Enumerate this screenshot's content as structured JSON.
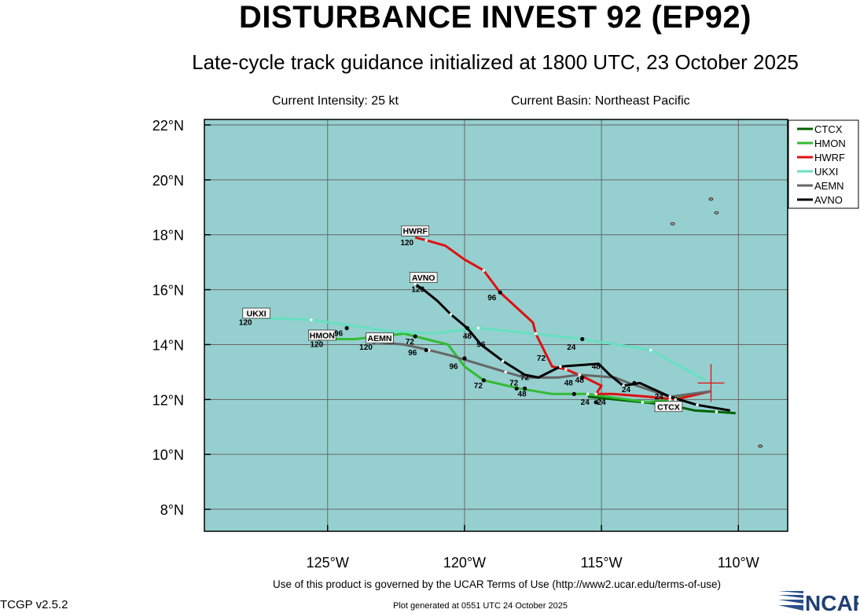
{
  "title": "DISTURBANCE INVEST 92 (EP92)",
  "subtitle": "Late-cycle track guidance initialized at 1800 UTC, 23 October 2025",
  "current_intensity": "Current Intensity: 25 kt",
  "current_basin": "Current Basin: Northeast Pacific",
  "footer_terms": "Use of this product is governed by the UCAR Terms of Use (http://www2.ucar.edu/terms-of-use)",
  "footer_version": "TCGP v2.5.2",
  "footer_generated": "Plot generated at 0551 UTC   24 October 2025",
  "logo_text": "NCAR",
  "map": {
    "lon_range": [
      -129.5,
      -108.2
    ],
    "lat_range": [
      7.2,
      22.2
    ],
    "lon_ticks": [
      -125,
      -120,
      -115,
      -110
    ],
    "lat_ticks": [
      8,
      10,
      12,
      14,
      16,
      18,
      20,
      22
    ],
    "lon_tick_labels": [
      "125°W",
      "120°W",
      "115°W",
      "110°W"
    ],
    "lat_tick_labels": [
      "8°N",
      "10°N",
      "12°N",
      "14°N",
      "16°N",
      "18°N",
      "20°N",
      "22°N"
    ],
    "background_color": "#96cfcf",
    "grid": true,
    "legend_position": "top-right",
    "current_position": {
      "lon": -111.0,
      "lat": 12.6,
      "marker": "red-crosshair"
    },
    "islands": [
      {
        "lon": -110.8,
        "lat": 18.8
      },
      {
        "lon": -112.4,
        "lat": 18.4
      },
      {
        "lon": -111.0,
        "lat": 19.3
      },
      {
        "lon": -109.2,
        "lat": 10.3
      }
    ]
  },
  "chart_data": {
    "type": "line",
    "series": [
      {
        "name": "CTCX",
        "color": "#006400",
        "points": [
          [
            -111.0,
            12.3
          ],
          [
            -112.0,
            11.65
          ],
          [
            -113.5,
            11.8
          ],
          [
            -116.0,
            12.2
          ],
          [
            -110.1,
            11.55
          ],
          [
            -110.8,
            11.55
          ]
        ],
        "track": [
          [
            -110.1,
            11.5
          ],
          [
            -110.8,
            11.55
          ],
          [
            -111.6,
            11.6
          ],
          [
            -112.5,
            11.8
          ],
          [
            -113.5,
            11.9
          ],
          [
            -114.5,
            12.0
          ],
          [
            -115.5,
            12.1
          ]
        ],
        "labels": [
          {
            "text": "CTCX",
            "lon": -112.55,
            "lat": 11.7,
            "boxed": true
          }
        ]
      },
      {
        "name": "HMON",
        "color": "#33bb33",
        "track": [
          [
            -111.0,
            12.3
          ],
          [
            -112.5,
            12.0
          ],
          [
            -113.3,
            11.9
          ],
          [
            -114.8,
            12.1
          ],
          [
            -115.5,
            12.2
          ],
          [
            -116.8,
            12.2
          ],
          [
            -118.0,
            12.4
          ],
          [
            -119.3,
            12.7
          ],
          [
            -120.0,
            13.2
          ],
          [
            -120.6,
            14.0
          ],
          [
            -121.8,
            14.3
          ],
          [
            -122.2,
            14.4
          ],
          [
            -124.0,
            14.2
          ],
          [
            -125.3,
            14.2
          ]
        ],
        "dots": [
          [
            -116.0,
            12.2
          ],
          [
            -117.8,
            12.4
          ],
          [
            -119.3,
            12.7
          ],
          [
            -121.8,
            14.3
          ],
          [
            -125.3,
            14.2
          ]
        ],
        "labels": [
          {
            "text": "48",
            "lon": -117.9,
            "lat": 12.2
          },
          {
            "text": "72",
            "lon": -119.5,
            "lat": 12.5
          },
          {
            "text": "120",
            "lon": -125.4,
            "lat": 14.0
          },
          {
            "text": "HMON",
            "lon": -125.2,
            "lat": 14.3,
            "boxed": true
          }
        ]
      },
      {
        "name": "HWRF",
        "color": "#dd1111",
        "track": [
          [
            -111.0,
            12.3
          ],
          [
            -112.3,
            12.0
          ],
          [
            -113.3,
            12.1
          ],
          [
            -114.6,
            12.2
          ],
          [
            -115.2,
            12.2
          ],
          [
            -115.0,
            12.5
          ],
          [
            -115.6,
            12.8
          ],
          [
            -116.3,
            13.1
          ],
          [
            -116.8,
            13.2
          ],
          [
            -117.0,
            13.6
          ],
          [
            -117.4,
            14.4
          ],
          [
            -117.5,
            14.8
          ],
          [
            -118.7,
            15.9
          ],
          [
            -119.3,
            16.7
          ],
          [
            -120.0,
            17.1
          ],
          [
            -120.7,
            17.6
          ],
          [
            -121.4,
            17.8
          ],
          [
            -121.8,
            17.9
          ]
        ],
        "dots": [
          [
            -115.2,
            11.9
          ],
          [
            -118.7,
            15.9
          ]
        ],
        "labels": [
          {
            "text": "24",
            "lon": -115.6,
            "lat": 11.9
          },
          {
            "text": "96",
            "lon": -119.0,
            "lat": 15.7
          },
          {
            "text": "120",
            "lon": -122.1,
            "lat": 17.7
          },
          {
            "text": "HWRF",
            "lon": -121.8,
            "lat": 18.1,
            "boxed": true
          }
        ]
      },
      {
        "name": "UKXI",
        "color": "#66e0c0",
        "track": [
          [
            -111.2,
            12.7
          ],
          [
            -113.2,
            13.8
          ],
          [
            -115.7,
            14.2
          ],
          [
            -117.5,
            14.4
          ],
          [
            -119.5,
            14.6
          ],
          [
            -121.2,
            14.4
          ],
          [
            -122.8,
            14.5
          ],
          [
            -125.6,
            14.9
          ],
          [
            -128.0,
            15.0
          ]
        ],
        "dots": [
          [
            -115.7,
            14.2
          ],
          [
            -124.3,
            14.6
          ]
        ],
        "labels": [
          {
            "text": "24",
            "lon": -116.1,
            "lat": 13.9
          },
          {
            "text": "48",
            "lon": -119.9,
            "lat": 14.3
          },
          {
            "text": "96",
            "lon": -124.6,
            "lat": 14.4
          },
          {
            "text": "120",
            "lon": -128.0,
            "lat": 14.8
          },
          {
            "text": "UKXI",
            "lon": -127.6,
            "lat": 15.1,
            "boxed": true
          }
        ]
      },
      {
        "name": "AEMN",
        "color": "#666666",
        "track": [
          [
            -111.0,
            12.3
          ],
          [
            -112.5,
            12.1
          ],
          [
            -114.0,
            12.6
          ],
          [
            -114.5,
            12.8
          ],
          [
            -115.8,
            12.9
          ],
          [
            -116.6,
            12.8
          ],
          [
            -117.8,
            12.8
          ],
          [
            -118.5,
            13.0
          ],
          [
            -119.5,
            13.3
          ],
          [
            -120.5,
            13.6
          ],
          [
            -121.3,
            13.8
          ],
          [
            -122.2,
            14.0
          ],
          [
            -123.3,
            14.1
          ]
        ],
        "dots": [
          [
            -121.4,
            13.8
          ],
          [
            -123.3,
            14.1
          ]
        ],
        "labels": [
          {
            "text": "48",
            "lon": -115.8,
            "lat": 12.7
          },
          {
            "text": "72",
            "lon": -118.2,
            "lat": 12.6
          },
          {
            "text": "96",
            "lon": -121.9,
            "lat": 13.7
          },
          {
            "text": "120",
            "lon": -123.6,
            "lat": 13.9
          },
          {
            "text": "AEMN",
            "lon": -123.1,
            "lat": 14.2,
            "boxed": true
          }
        ]
      },
      {
        "name": "AVNO",
        "color": "#000000",
        "track": [
          [
            -110.3,
            11.6
          ],
          [
            -111.5,
            11.8
          ],
          [
            -112.5,
            12.1
          ],
          [
            -113.6,
            12.6
          ],
          [
            -114.2,
            12.5
          ],
          [
            -114.7,
            12.9
          ],
          [
            -115.1,
            13.3
          ],
          [
            -116.5,
            13.2
          ],
          [
            -117.3,
            12.8
          ],
          [
            -117.8,
            12.9
          ],
          [
            -118.6,
            13.4
          ],
          [
            -119.4,
            14.0
          ],
          [
            -119.9,
            14.6
          ],
          [
            -120.5,
            15.1
          ],
          [
            -121.0,
            15.6
          ],
          [
            -121.5,
            16.0
          ],
          [
            -121.8,
            16.2
          ]
        ],
        "dots": [
          [
            -115.7,
            12.8
          ],
          [
            -118.1,
            12.4
          ],
          [
            -119.9,
            14.6
          ],
          [
            -120.0,
            13.5
          ],
          [
            -113.8,
            12.6
          ]
        ],
        "labels": [
          {
            "text": "24",
            "lon": -114.1,
            "lat": 12.35
          },
          {
            "text": "48",
            "lon": -115.2,
            "lat": 13.2
          },
          {
            "text": "72",
            "lon": -117.2,
            "lat": 13.5
          },
          {
            "text": "96",
            "lon": -119.4,
            "lat": 14.0
          },
          {
            "text": "96",
            "lon": -120.4,
            "lat": 13.2
          },
          {
            "text": "120",
            "lon": -121.7,
            "lat": 16.0
          },
          {
            "text": "AVNO",
            "lon": -121.5,
            "lat": 16.4,
            "boxed": true
          }
        ]
      }
    ],
    "extra_labels": [
      {
        "text": "24",
        "lon": -115.0,
        "lat": 11.9
      },
      {
        "text": "24",
        "lon": -112.9,
        "lat": 12.1
      },
      {
        "text": "48",
        "lon": -116.2,
        "lat": 12.6
      },
      {
        "text": "72",
        "lon": -122.0,
        "lat": 14.1
      },
      {
        "text": "72",
        "lon": -117.8,
        "lat": 12.8
      }
    ]
  }
}
